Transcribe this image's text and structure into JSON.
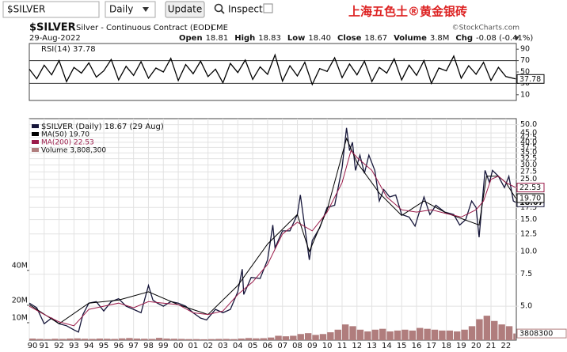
{
  "toolbar": {
    "symbol": "$SILVER",
    "period": "Daily",
    "button": "Update",
    "inspect": "Inspect",
    "watermark": "上海五色土®黄金银砖"
  },
  "header": {
    "symbol": "$SILVER",
    "description": "Silver - Continuous Contract (EOD)",
    "exchange": "CME",
    "credit": "©StockCharts.com",
    "date": "29-Aug-2022",
    "quote": [
      [
        "Open",
        "18.81"
      ],
      [
        "High",
        "18.83"
      ],
      [
        "Low",
        "18.40"
      ],
      [
        "Close",
        "18.67"
      ],
      [
        "Volume",
        "3.8M"
      ],
      [
        "Chg",
        "-0.08 (-0.41%)"
      ]
    ]
  },
  "chart_data": [
    {
      "type": "line",
      "xlim": [
        1990,
        2022.7
      ],
      "ylim": [
        0,
        100
      ],
      "yticks": [
        10,
        30,
        50,
        70,
        90
      ],
      "bands": [
        30,
        70
      ],
      "series": [
        {
          "name": "RSI(14) 37.78",
          "color": "#000000",
          "last_label": "37.78",
          "x": [
            1990,
            1990.5,
            1991,
            1991.5,
            1992,
            1992.5,
            1993,
            1993.5,
            1994,
            1994.5,
            1995,
            1995.5,
            1996,
            1996.5,
            1997,
            1997.5,
            1998,
            1998.5,
            1999,
            1999.5,
            2000,
            2000.5,
            2001,
            2001.5,
            2002,
            2002.5,
            2003,
            2003.5,
            2004,
            2004.5,
            2005,
            2005.5,
            2006,
            2006.5,
            2007,
            2007.5,
            2008,
            2008.5,
            2009,
            2009.5,
            2010,
            2010.5,
            2011,
            2011.5,
            2012,
            2012.5,
            2013,
            2013.5,
            2014,
            2014.5,
            2015,
            2015.5,
            2016,
            2016.5,
            2017,
            2017.5,
            2018,
            2018.5,
            2019,
            2019.5,
            2020,
            2020.5,
            2021,
            2021.5,
            2022,
            2022.66
          ],
          "values": [
            55,
            38,
            62,
            45,
            70,
            33,
            58,
            48,
            66,
            41,
            52,
            72,
            36,
            60,
            44,
            68,
            39,
            57,
            50,
            74,
            35,
            63,
            47,
            69,
            42,
            55,
            31,
            65,
            49,
            71,
            37,
            59,
            46,
            80,
            34,
            61,
            43,
            67,
            28,
            56,
            51,
            75,
            40,
            64,
            45,
            69,
            33,
            58,
            48,
            73,
            36,
            62,
            44,
            70,
            30,
            57,
            52,
            78,
            39,
            61,
            46,
            67,
            35,
            58,
            42,
            37.78
          ]
        }
      ]
    },
    {
      "type": "line",
      "log": true,
      "grid": true,
      "xlim": [
        1990,
        2022.7
      ],
      "ylim": [
        3.25,
        54
      ],
      "yticks": [
        {
          "value": 5,
          "label": "5.0"
        },
        {
          "value": 7.5,
          "label": "7.5"
        },
        {
          "value": 10,
          "label": "10.0"
        },
        {
          "value": 12.5,
          "label": "12.5"
        },
        {
          "value": 15,
          "label": "15.0"
        },
        {
          "value": 17.5,
          "label": "17.5"
        },
        {
          "value": 20,
          "label": "20.0"
        },
        {
          "value": 22.5,
          "label": "22.5"
        },
        {
          "value": 25,
          "label": "25.0"
        },
        {
          "value": 27.5,
          "label": "27.5"
        },
        {
          "value": 30,
          "label": "30.0"
        },
        {
          "value": 32.5,
          "label": "32.5"
        },
        {
          "value": 35,
          "label": "35.0"
        },
        {
          "value": 37.5,
          "label": "37.5"
        },
        {
          "value": 40,
          "label": "40.0"
        },
        {
          "value": 42.5,
          "label": "42.5"
        },
        {
          "value": 45,
          "label": "45.0"
        },
        {
          "value": 50,
          "label": "50.0"
        }
      ],
      "y2lim": [
        0,
        127000000
      ],
      "y2ticks": [
        {
          "value": 10000000,
          "label": "10M"
        },
        {
          "value": 20000000,
          "label": "20M"
        },
        {
          "value": 40000000,
          "label": "40M"
        }
      ],
      "xticks": [
        {
          "value": 1990,
          "label": "90"
        },
        {
          "value": 1991,
          "label": "91"
        },
        {
          "value": 1992,
          "label": "92"
        },
        {
          "value": 1993,
          "label": "93"
        },
        {
          "value": 1994,
          "label": "94"
        },
        {
          "value": 1995,
          "label": "95"
        },
        {
          "value": 1996,
          "label": "96"
        },
        {
          "value": 1997,
          "label": "97"
        },
        {
          "value": 1998,
          "label": "98"
        },
        {
          "value": 1999,
          "label": "99"
        },
        {
          "value": 2000,
          "label": "00"
        },
        {
          "value": 2001,
          "label": "01"
        },
        {
          "value": 2002,
          "label": "02"
        },
        {
          "value": 2003,
          "label": "03"
        },
        {
          "value": 2004,
          "label": "04"
        },
        {
          "value": 2005,
          "label": "05"
        },
        {
          "value": 2006,
          "label": "06"
        },
        {
          "value": 2007,
          "label": "07"
        },
        {
          "value": 2008,
          "label": "08"
        },
        {
          "value": 2009,
          "label": "09"
        },
        {
          "value": 2010,
          "label": "10"
        },
        {
          "value": 2011,
          "label": "11"
        },
        {
          "value": 2012,
          "label": "12"
        },
        {
          "value": 2013,
          "label": "13"
        },
        {
          "value": 2014,
          "label": "14"
        },
        {
          "value": 2015,
          "label": "15"
        },
        {
          "value": 2016,
          "label": "16"
        },
        {
          "value": 2017,
          "label": "17"
        },
        {
          "value": 2018,
          "label": "18"
        },
        {
          "value": 2019,
          "label": "19"
        },
        {
          "value": 2020,
          "label": "20"
        },
        {
          "value": 2021,
          "label": "21"
        },
        {
          "value": 2022,
          "label": "22"
        }
      ],
      "series": [
        {
          "name": "$SILVER (Daily) 18.67 (29 Aug)",
          "color": "#16163a",
          "last_label": "18.67",
          "x": [
            1990,
            1990.5,
            1991,
            1991.5,
            1992,
            1992.5,
            1993,
            1993.3,
            1993.6,
            1994,
            1994.5,
            1995,
            1995.5,
            1996,
            1996.5,
            1997,
            1997.5,
            1998,
            1998.3,
            1998.6,
            1999,
            1999.5,
            2000,
            2000.5,
            2001,
            2001.5,
            2001.9,
            2002.5,
            2003,
            2003.5,
            2004,
            2004.3,
            2004.4,
            2004.9,
            2005.5,
            2006,
            2006.35,
            2006.5,
            2007,
            2007.5,
            2008,
            2008.2,
            2008.8,
            2009,
            2009.5,
            2010,
            2010.5,
            2011,
            2011.3,
            2011.5,
            2011.7,
            2011.9,
            2012.2,
            2012.5,
            2012.8,
            2013.2,
            2013.5,
            2013.8,
            2014.2,
            2014.6,
            2015,
            2015.5,
            2015.9,
            2016.5,
            2016.9,
            2017.3,
            2017.9,
            2018.5,
            2018.9,
            2019.3,
            2019.7,
            2020,
            2020.2,
            2020.6,
            2020.9,
            2021.1,
            2021.5,
            2021.9,
            2022.2,
            2022.5,
            2022.66
          ],
          "values": [
            5.2,
            4.9,
            4.0,
            4.3,
            4.0,
            3.9,
            3.7,
            3.6,
            4.5,
            5.2,
            5.3,
            4.7,
            5.3,
            5.5,
            5.0,
            4.8,
            4.6,
            6.5,
            5.4,
            5.2,
            5.0,
            5.3,
            5.2,
            5.0,
            4.6,
            4.3,
            4.2,
            4.8,
            4.6,
            4.8,
            6.0,
            8.0,
            5.8,
            7.2,
            7.1,
            9.0,
            14.0,
            10.5,
            13.0,
            13.0,
            16.0,
            20.5,
            9.0,
            11.5,
            13.5,
            17.5,
            18.0,
            29.0,
            48.0,
            36.0,
            40.0,
            28.0,
            34.0,
            27.0,
            34.0,
            28.0,
            19.0,
            22.0,
            20.0,
            20.5,
            16.0,
            15.5,
            13.8,
            20.0,
            16.0,
            18.0,
            16.5,
            16.0,
            14.0,
            15.0,
            19.0,
            17.5,
            12.0,
            28.0,
            24.0,
            28.0,
            26.0,
            22.5,
            26.0,
            19.0,
            18.67
          ]
        },
        {
          "name": "MA(50) 19.70",
          "color": "#000000",
          "last_label": "19.70",
          "x": [
            1990,
            1992,
            1994,
            1996,
            1998,
            2000,
            2002,
            2004,
            2006,
            2008,
            2008.8,
            2010,
            2011.3,
            2012,
            2013.5,
            2015,
            2016.5,
            2018,
            2020.2,
            2020.7,
            2021.5,
            2022,
            2022.66
          ],
          "values": [
            5.1,
            4.0,
            5.2,
            5.4,
            6.0,
            5.1,
            4.5,
            6.5,
            11,
            16,
            10,
            17,
            42,
            31,
            21,
            15.8,
            19,
            16.3,
            14,
            26,
            26,
            24,
            19.7
          ]
        },
        {
          "name": "MA(200) 22.53",
          "color": "#9b1b4a",
          "last_label": "22.53",
          "x": [
            1990,
            1991,
            1992,
            1993,
            1994,
            1995,
            1996,
            1997,
            1998,
            1999,
            2000,
            2001,
            2002,
            2003,
            2004,
            2005,
            2006,
            2007,
            2008,
            2009,
            2010,
            2011,
            2011.6,
            2012,
            2013,
            2014,
            2015,
            2016,
            2017,
            2018,
            2019,
            2020,
            2020.5,
            2021,
            2021.5,
            2022,
            2022.66
          ],
          "values": [
            5.0,
            4.5,
            4.1,
            3.9,
            4.8,
            5.0,
            5.2,
            4.9,
            5.3,
            5.2,
            5.1,
            4.6,
            4.5,
            4.7,
            5.8,
            6.8,
            8.5,
            12.5,
            14.5,
            13.0,
            16.5,
            24.0,
            36.0,
            33.0,
            28.0,
            20.0,
            17.0,
            16.5,
            17.0,
            16.2,
            15.5,
            17.0,
            19.0,
            25.0,
            26.0,
            24.0,
            22.53
          ]
        },
        {
          "name": "Volume 3,808,300",
          "type": "bar",
          "axis": "y2",
          "color": "#b07d7d",
          "last_label": "3808300",
          "x": [
            1990,
            1990.5,
            1991,
            1991.5,
            1992,
            1992.5,
            1993,
            1993.5,
            1994,
            1994.5,
            1995,
            1995.5,
            1996,
            1996.5,
            1997,
            1997.5,
            1998,
            1998.5,
            1999,
            1999.5,
            2000,
            2000.5,
            2001,
            2001.5,
            2002,
            2002.5,
            2003,
            2003.5,
            2004,
            2004.5,
            2005,
            2005.5,
            2006,
            2006.5,
            2007,
            2007.5,
            2008,
            2008.5,
            2009,
            2009.5,
            2010,
            2010.5,
            2011,
            2011.5,
            2012,
            2012.5,
            2013,
            2013.5,
            2014,
            2014.5,
            2015,
            2015.5,
            2016,
            2016.5,
            2017,
            2017.5,
            2018,
            2018.5,
            2019,
            2019.5,
            2020,
            2020.5,
            2021,
            2021.5,
            2022,
            2022.5
          ],
          "values": [
            900000,
            700000,
            600000,
            800000,
            700000,
            900000,
            1000000,
            800000,
            700000,
            900000,
            800000,
            700000,
            1000000,
            1200000,
            900000,
            800000,
            700000,
            1300000,
            900000,
            800000,
            700000,
            600000,
            600000,
            500000,
            600000,
            700000,
            700000,
            600000,
            900000,
            1200000,
            1000000,
            1100000,
            1500000,
            2500000,
            2200000,
            2500000,
            3500000,
            4000000,
            3000000,
            3500000,
            4500000,
            6000000,
            9000000,
            8000000,
            6000000,
            5000000,
            6000000,
            6500000,
            5000000,
            5500000,
            6000000,
            5500000,
            7000000,
            6500000,
            6000000,
            5500000,
            5500000,
            5000000,
            6000000,
            8000000,
            12000000,
            14000000,
            11000000,
            9000000,
            8000000,
            3808300
          ]
        }
      ]
    }
  ]
}
